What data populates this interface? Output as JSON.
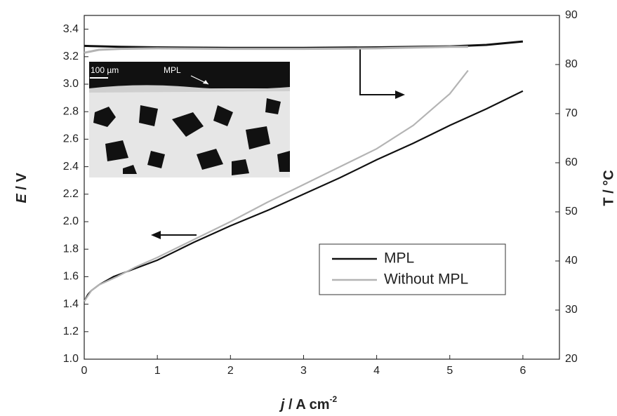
{
  "chart_data": {
    "type": "line",
    "xlabel": {
      "var": "j",
      "unit": " / A cm",
      "exp": "-2"
    },
    "ylabel": {
      "var": "E",
      "unit": " / V"
    },
    "y2label": "T / °C",
    "xlim": [
      0,
      6.5
    ],
    "xticks": [
      0,
      1,
      2,
      3,
      4,
      5,
      6
    ],
    "ylim": [
      1.0,
      3.5
    ],
    "yticks": [
      {
        "value": 1.0,
        "label": "1.0"
      },
      {
        "value": 1.2,
        "label": "1.2"
      },
      {
        "value": 1.4,
        "label": "1.4"
      },
      {
        "value": 1.6,
        "label": "1.6"
      },
      {
        "value": 1.8,
        "label": "1.8"
      },
      {
        "value": 2.0,
        "label": "2.0"
      },
      {
        "value": 2.2,
        "label": "2.2"
      },
      {
        "value": 2.4,
        "label": "2.4"
      },
      {
        "value": 2.6,
        "label": "2.6"
      },
      {
        "value": 2.8,
        "label": "2.8"
      },
      {
        "value": 3.0,
        "label": "3.0"
      },
      {
        "value": 3.2,
        "label": "3.2"
      },
      {
        "value": 3.4,
        "label": "3.4"
      }
    ],
    "y2lim": [
      20,
      90
    ],
    "y2ticks": [
      20,
      30,
      40,
      50,
      60,
      70,
      80,
      90
    ],
    "legend": "lower right",
    "series": [
      {
        "name": "MPL",
        "color": "#111111",
        "x": [
          0,
          0.05,
          0.1,
          0.2,
          0.4,
          0.7,
          1,
          1.5,
          2,
          2.5,
          3,
          3.5,
          4,
          4.5,
          5,
          5.5,
          6
        ],
        "values": [
          1.42,
          1.47,
          1.5,
          1.54,
          1.6,
          1.66,
          1.72,
          1.85,
          1.97,
          2.08,
          2.2,
          2.32,
          2.45,
          2.57,
          2.7,
          2.82,
          2.95
        ]
      },
      {
        "name": "Without MPL",
        "color": "#b4b4b4",
        "x": [
          0,
          0.05,
          0.1,
          0.2,
          0.45,
          0.7,
          1,
          1.5,
          2,
          2.5,
          3,
          3.5,
          4,
          4.5,
          5,
          5.25
        ],
        "values": [
          1.42,
          1.46,
          1.5,
          1.54,
          1.6,
          1.67,
          1.74,
          1.87,
          2.0,
          2.14,
          2.27,
          2.4,
          2.53,
          2.7,
          2.93,
          3.1
        ]
      }
    ],
    "temperature_series": [
      {
        "color": "#111111",
        "axis": "y2",
        "x": [
          0,
          0.5,
          1,
          2,
          3,
          4,
          5,
          5.5,
          6
        ],
        "values": [
          83.8,
          83.6,
          83.5,
          83.4,
          83.4,
          83.5,
          83.7,
          84.0,
          84.7
        ]
      },
      {
        "color": "#b4b4b4",
        "axis": "y2",
        "x": [
          0,
          0.2,
          0.5,
          1,
          2,
          3,
          4,
          5,
          5.25
        ],
        "values": [
          82.4,
          83.0,
          83.2,
          83.3,
          83.2,
          83.2,
          83.3,
          83.6,
          83.6
        ]
      }
    ],
    "inset": {
      "scale_label": "100 µm",
      "label": "MPL"
    }
  }
}
